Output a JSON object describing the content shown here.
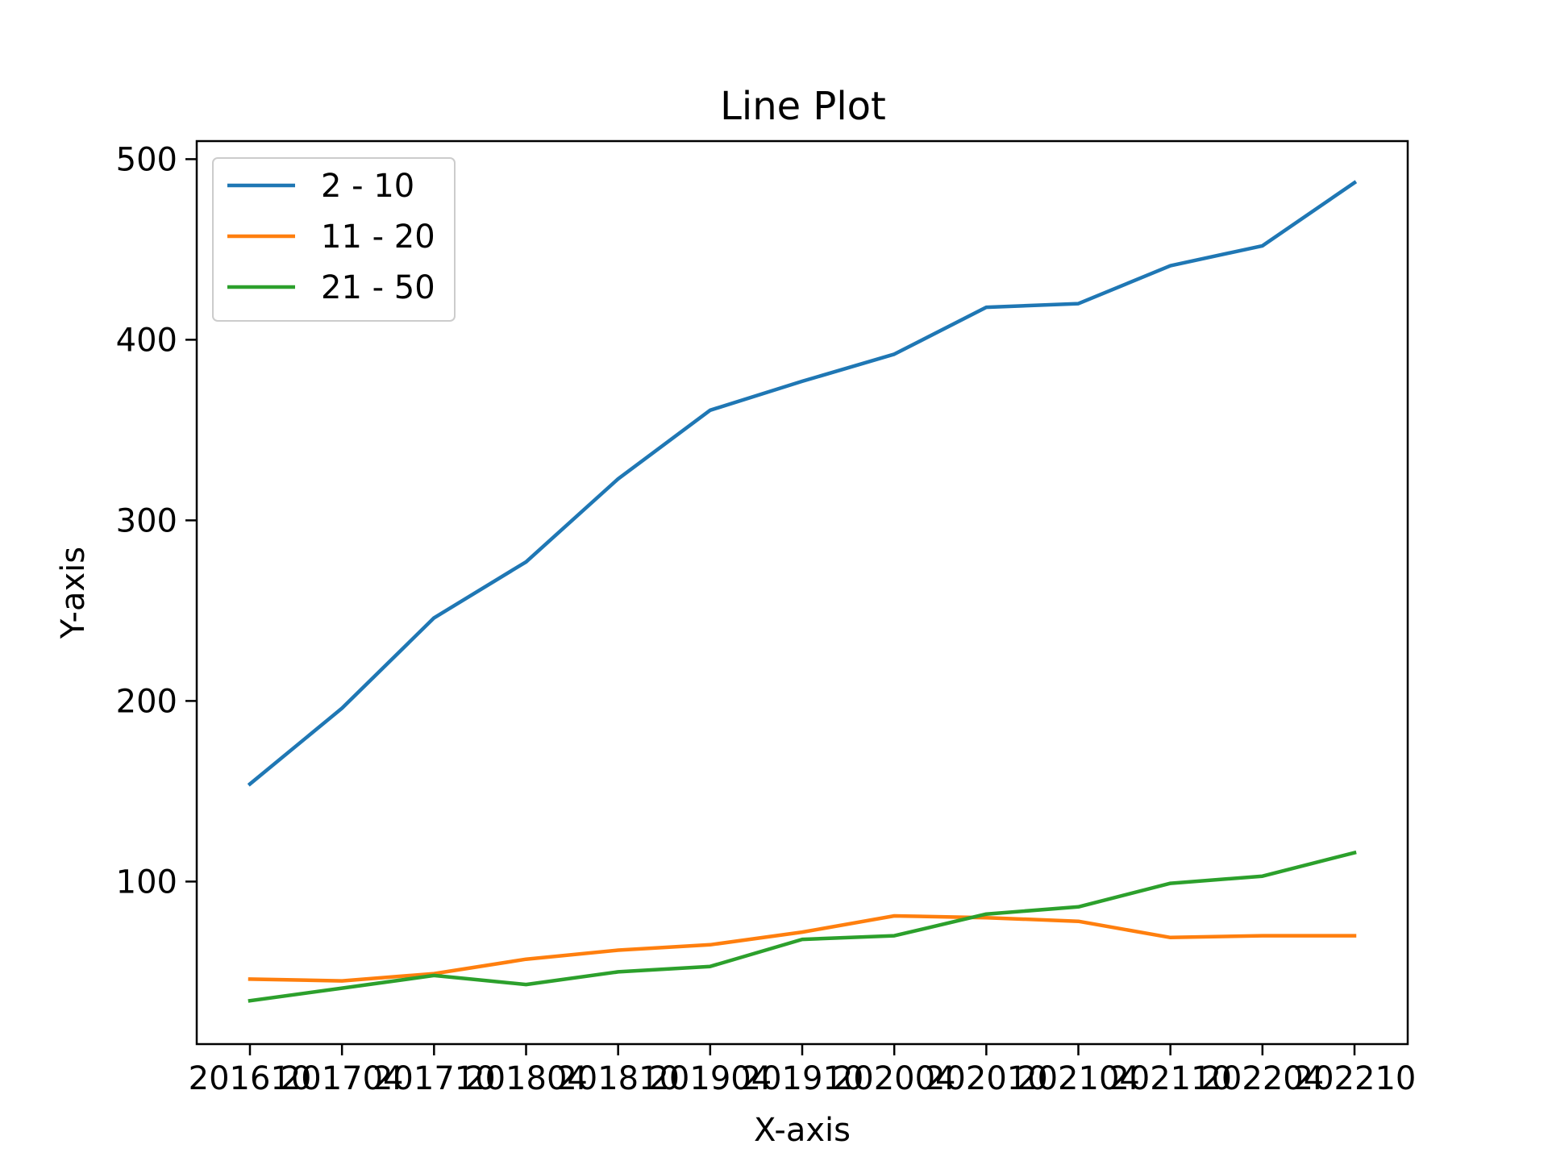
{
  "chart_data": {
    "type": "line",
    "title": "Line Plot",
    "xlabel": "X-axis",
    "ylabel": "Y-axis",
    "categories": [
      "201610",
      "201704",
      "201710",
      "201804",
      "201810",
      "201904",
      "201910",
      "202004",
      "202010",
      "202104",
      "202110",
      "202204",
      "202210"
    ],
    "ylim": [
      10,
      510
    ],
    "yticks": [
      100,
      200,
      300,
      400,
      500
    ],
    "grid": false,
    "legend_position": "upper-left",
    "series": [
      {
        "name": "2 - 10",
        "color": "#1f77b4",
        "values": [
          154,
          196,
          246,
          277,
          323,
          361,
          377,
          392,
          418,
          420,
          441,
          452,
          487
        ]
      },
      {
        "name": "11 - 20",
        "color": "#ff7f0e",
        "values": [
          46,
          45,
          49,
          57,
          62,
          65,
          72,
          81,
          80,
          78,
          69,
          70,
          70
        ]
      },
      {
        "name": "21 - 50",
        "color": "#2ca02c",
        "values": [
          34,
          41,
          48,
          43,
          50,
          53,
          68,
          70,
          82,
          86,
          99,
          103,
          116
        ]
      }
    ]
  }
}
